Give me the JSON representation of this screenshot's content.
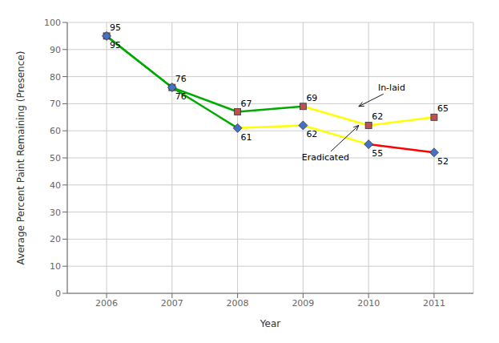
{
  "chart_data": {
    "type": "line",
    "xlabel": "Year",
    "ylabel": "Average Percent Paint Remaining (Presence)",
    "x": [
      2006,
      2007,
      2008,
      2009,
      2010,
      2011
    ],
    "xlim": [
      2005.4,
      2011.6
    ],
    "xticks": [
      2006,
      2007,
      2008,
      2009,
      2010,
      2011
    ],
    "ylim": [
      0,
      100
    ],
    "yticks": [
      0,
      10,
      20,
      30,
      40,
      50,
      60,
      70,
      80,
      90,
      100
    ],
    "grid": true,
    "data_labels": true,
    "series": [
      {
        "color": "#C0504D",
        "colors": [
          "#00AA00",
          "#00AA00",
          "#00AA00",
          "#FFFF00",
          "#FFFF00"
        ],
        "marker": "square",
        "values": [
          95,
          76,
          67,
          69,
          62,
          65
        ]
      },
      {
        "color": "#4472C4",
        "colors": [
          "#00AA00",
          "#00AA00",
          "#FFFF00",
          "#FFFF00",
          "#FF0000"
        ],
        "marker": "diamond",
        "values": [
          95,
          76,
          61,
          62,
          55,
          52
        ]
      }
    ],
    "annotations": [
      {
        "text": "In-laid",
        "xy": [
          2009.85,
          69
        ]
      },
      {
        "text": "Eradicated",
        "xy": [
          2009.85,
          62
        ]
      }
    ]
  }
}
